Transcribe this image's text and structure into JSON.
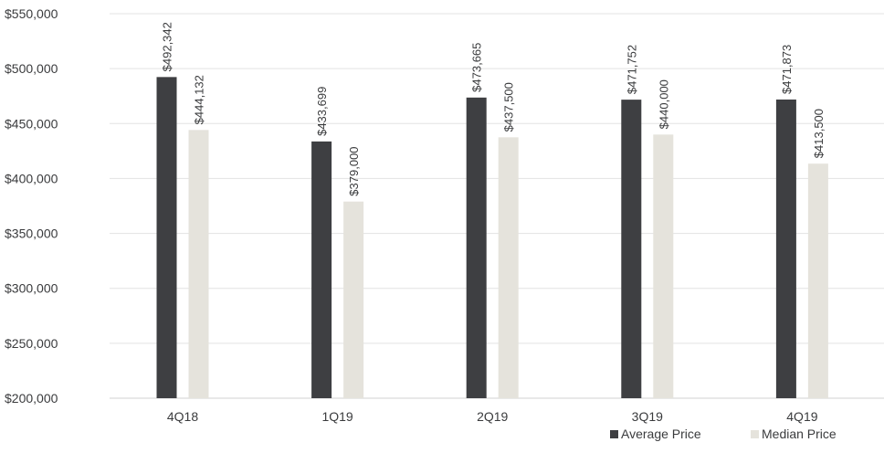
{
  "chart_data": {
    "type": "bar",
    "categories": [
      "4Q18",
      "1Q19",
      "2Q19",
      "3Q19",
      "4Q19"
    ],
    "series": [
      {
        "name": "Average Price",
        "color": "#3e3f42",
        "values": [
          492342,
          433699,
          473665,
          471752,
          471873
        ],
        "labels": [
          "$492,342",
          "$433,699",
          "$473,665",
          "$471,752",
          "$471,873"
        ]
      },
      {
        "name": "Median Price",
        "color": "#e5e3dc",
        "values": [
          444132,
          379000,
          437500,
          440000,
          413500
        ],
        "labels": [
          "$444,132",
          "$379,000",
          "$437,500",
          "$440,000",
          "$413,500"
        ]
      }
    ],
    "y_ticks": [
      "$550,000",
      "$500,000",
      "$450,000",
      "$400,000",
      "$350,000",
      "$300,000",
      "$250,000",
      "$200,000"
    ],
    "ylim": [
      200000,
      550000
    ],
    "y_tick_step": 50000,
    "grid": true,
    "grid_color": "#e3e3e3",
    "legend_position": "bottom-right",
    "title": "",
    "xlabel": "",
    "ylabel": ""
  }
}
